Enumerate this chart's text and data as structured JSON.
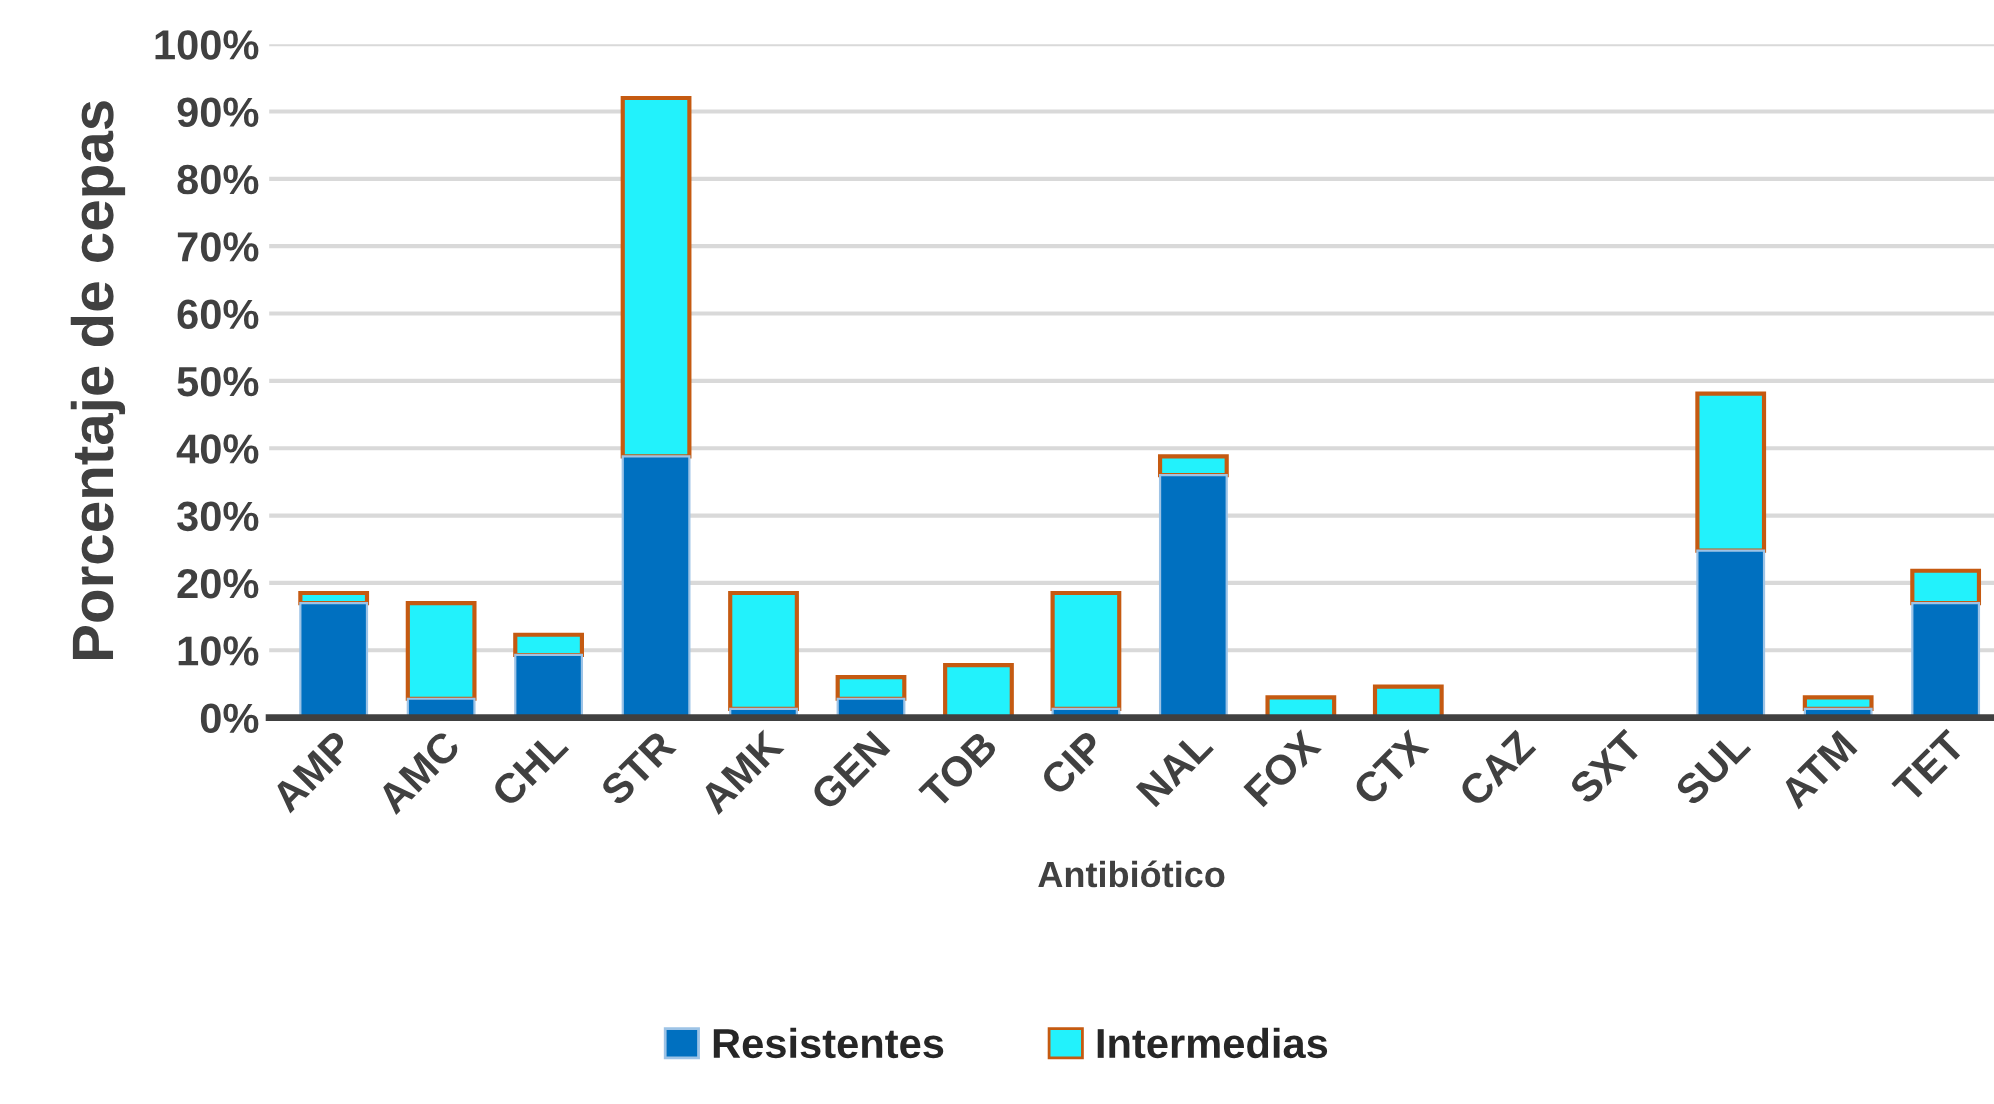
{
  "chart_data": {
    "type": "bar",
    "stacked": true,
    "xlabel": "Antibiótico",
    "ylabel": "Porcentaje de cepas",
    "categories": [
      "AMP",
      "AMC",
      "CHL",
      "STR",
      "AMK",
      "GEN",
      "TOB",
      "CIP",
      "NAL",
      "FOX",
      "CTX",
      "CAZ",
      "SXT",
      "SUL",
      "ATM",
      "TET"
    ],
    "series": [
      {
        "name": "Resistentes",
        "color": "#0070c0",
        "values": [
          17.0,
          2.8,
          9.3,
          38.8,
          1.3,
          2.8,
          0,
          1.3,
          36.0,
          0,
          0,
          0,
          0,
          24.8,
          1.3,
          17.0
        ]
      },
      {
        "name": "Intermedias",
        "color": "#22f2fc",
        "values": [
          1.5,
          14.2,
          3.0,
          53.2,
          17.2,
          3.2,
          7.8,
          17.2,
          2.8,
          3.0,
          4.6,
          0,
          0,
          23.3,
          1.7,
          4.8
        ]
      }
    ],
    "ylim": [
      0,
      100
    ],
    "yticks": [
      {
        "value": 0,
        "label": "0%"
      },
      {
        "value": 10,
        "label": "10%"
      },
      {
        "value": 20,
        "label": "20%"
      },
      {
        "value": 30,
        "label": "30%"
      },
      {
        "value": 40,
        "label": "40%"
      },
      {
        "value": 50,
        "label": "50%"
      },
      {
        "value": 60,
        "label": "60%"
      },
      {
        "value": 70,
        "label": "70%"
      },
      {
        "value": 80,
        "label": "80%"
      },
      {
        "value": 90,
        "label": "90%"
      },
      {
        "value": 100,
        "label": "100%"
      }
    ],
    "grid": "y",
    "legend": "bottom"
  }
}
